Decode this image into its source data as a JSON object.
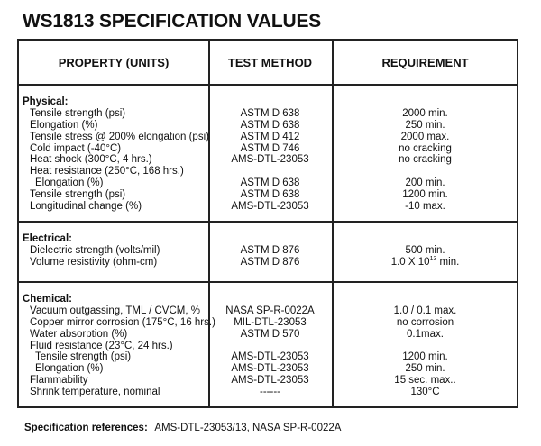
{
  "title": "WS1813 SPECIFICATION VALUES",
  "headers": [
    "PROPERTY (UNITS)",
    "TEST METHOD",
    "REQUIREMENT"
  ],
  "sections": [
    {
      "label": "Physical:",
      "rows": [
        {
          "property": "Tensile strength (psi)",
          "method": "ASTM D 638",
          "requirement": "2000 min."
        },
        {
          "property": "Elongation (%)",
          "method": "ASTM D 638",
          "requirement": "250 min."
        },
        {
          "property": "Tensile stress @ 200% elongation (psi)",
          "method": "ASTM D 412",
          "requirement": "2000 max."
        },
        {
          "property": "Cold impact  (-40°C)",
          "method": "ASTM D 746",
          "requirement": "no cracking"
        },
        {
          "property": "Heat shock (300°C, 4 hrs.)",
          "method": "AMS-DTL-23053",
          "requirement": "no cracking"
        },
        {
          "property": "Heat resistance (250°C, 168 hrs.)",
          "method": "",
          "requirement": ""
        },
        {
          "property": "Elongation (%)",
          "method": "ASTM D 638",
          "requirement": "200 min.",
          "sub": true
        },
        {
          "property": "Tensile strength (psi)",
          "method": "ASTM D 638",
          "requirement": "1200 min."
        },
        {
          "property": "Longitudinal change (%)",
          "method": "AMS-DTL-23053",
          "requirement": "-10 max."
        }
      ]
    },
    {
      "label": "Electrical:",
      "rows": [
        {
          "property": "Dielectric strength (volts/mil)",
          "method": "ASTM D 876",
          "requirement": "500 min."
        },
        {
          "property": "Volume resistivity (ohm-cm)",
          "method": "ASTM D 876",
          "requirement_base": "1.0 X 10",
          "requirement_exp": "13",
          "requirement_suffix": " min."
        }
      ]
    },
    {
      "label": "Chemical:",
      "rows": [
        {
          "property": "Vacuum outgassing, TML / CVCM, %",
          "method": "NASA SP-R-0022A",
          "requirement": "1.0 / 0.1 max."
        },
        {
          "property": "Copper mirror corrosion (175°C, 16 hrs.)",
          "method": "MIL-DTL-23053",
          "requirement": "no corrosion"
        },
        {
          "property": "Water absorption (%)",
          "method": "ASTM D 570",
          "requirement": "0.1max."
        },
        {
          "property": "Fluid resistance (23°C, 24 hrs.)",
          "method": "",
          "requirement": ""
        },
        {
          "property": "Tensile strength (psi)",
          "method": "AMS-DTL-23053",
          "requirement": "1200 min.",
          "sub": true
        },
        {
          "property": "Elongation (%)",
          "method": "AMS-DTL-23053",
          "requirement": "250 min.",
          "sub": true
        },
        {
          "property": "Flammability",
          "method": "AMS-DTL-23053",
          "requirement": "15 sec. max.."
        },
        {
          "property": "Shrink temperature, nominal",
          "method": "------",
          "requirement": "130°C"
        }
      ]
    }
  ],
  "footer": {
    "label": "Specification references:",
    "value": "AMS-DTL-23053/13, NASA SP-R-0022A"
  }
}
